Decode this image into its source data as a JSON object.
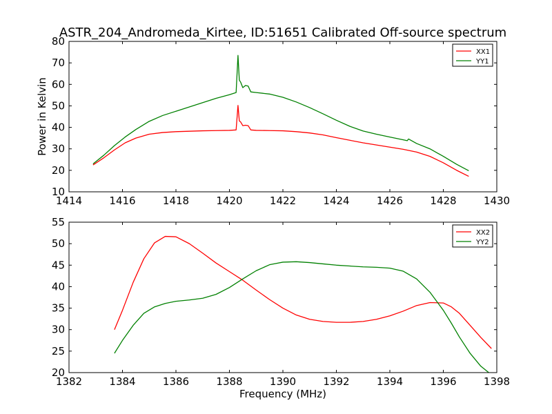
{
  "figure_title": "ASTR_204_Andromeda_Kirtee, ID:51651 Calibrated Off-source spectrum",
  "chart_data": [
    {
      "type": "line",
      "title": "ASTR_204_Andromeda_Kirtee, ID:51651 Calibrated Off-source spectrum",
      "xlabel": "",
      "ylabel": "Power in Kelvin",
      "xlim": [
        1414,
        1430
      ],
      "ylim": [
        10,
        80
      ],
      "xticks": [
        1414,
        1416,
        1418,
        1420,
        1422,
        1424,
        1426,
        1428,
        1430
      ],
      "yticks": [
        10,
        20,
        30,
        40,
        50,
        60,
        70,
        80
      ],
      "grid": false,
      "legend_position": "top-right",
      "series": [
        {
          "name": "XX1",
          "color": "#ff0000",
          "x": [
            1414.9,
            1415.3,
            1415.7,
            1416.1,
            1416.5,
            1417.0,
            1417.5,
            1418.0,
            1418.5,
            1419.0,
            1419.5,
            1420.0,
            1420.25,
            1420.32,
            1420.37,
            1420.42,
            1420.5,
            1420.6,
            1420.7,
            1420.8,
            1421.0,
            1421.5,
            1422.0,
            1422.5,
            1423.0,
            1423.5,
            1424.0,
            1424.5,
            1425.0,
            1425.5,
            1426.0,
            1426.5,
            1427.0,
            1427.5,
            1428.0,
            1428.5,
            1428.95
          ],
          "y": [
            22.5,
            25.8,
            29.5,
            32.8,
            35.0,
            36.8,
            37.6,
            38.0,
            38.2,
            38.4,
            38.5,
            38.6,
            38.8,
            50.2,
            43.0,
            42.5,
            40.8,
            41.0,
            40.8,
            38.8,
            38.6,
            38.5,
            38.4,
            38.0,
            37.4,
            36.5,
            35.2,
            34.0,
            32.8,
            31.8,
            30.8,
            29.8,
            28.5,
            26.5,
            23.5,
            20.0,
            17.2
          ]
        },
        {
          "name": "YY1",
          "color": "#008000",
          "x": [
            1414.9,
            1415.3,
            1415.7,
            1416.1,
            1416.5,
            1417.0,
            1417.5,
            1418.0,
            1418.5,
            1419.0,
            1419.5,
            1420.0,
            1420.25,
            1420.32,
            1420.37,
            1420.42,
            1420.5,
            1420.6,
            1420.7,
            1420.8,
            1421.0,
            1421.5,
            1422.0,
            1422.5,
            1423.0,
            1423.5,
            1424.0,
            1424.5,
            1425.0,
            1425.5,
            1426.0,
            1426.5,
            1426.65,
            1426.7,
            1427.0,
            1427.5,
            1428.0,
            1428.5,
            1428.95
          ],
          "y": [
            23.0,
            27.0,
            31.5,
            35.5,
            39.0,
            42.8,
            45.5,
            47.5,
            49.5,
            51.5,
            53.5,
            55.2,
            56.2,
            73.5,
            62.0,
            61.0,
            58.5,
            59.5,
            59.2,
            56.5,
            56.2,
            55.5,
            54.0,
            51.8,
            49.2,
            46.3,
            43.3,
            40.5,
            38.3,
            36.8,
            35.5,
            34.2,
            33.8,
            34.6,
            32.5,
            30.0,
            26.5,
            22.8,
            19.8
          ]
        }
      ]
    },
    {
      "type": "line",
      "title": "",
      "xlabel": "Frequency (MHz)",
      "ylabel": "",
      "xlim": [
        1382,
        1398
      ],
      "ylim": [
        20,
        55
      ],
      "xticks": [
        1382,
        1384,
        1386,
        1388,
        1390,
        1392,
        1394,
        1396,
        1398
      ],
      "yticks": [
        20,
        25,
        30,
        35,
        40,
        45,
        50,
        55
      ],
      "grid": false,
      "legend_position": "top-right",
      "series": [
        {
          "name": "XX2",
          "color": "#ff0000",
          "x": [
            1383.7,
            1384.0,
            1384.4,
            1384.8,
            1385.2,
            1385.6,
            1386.0,
            1386.5,
            1387.0,
            1387.5,
            1388.0,
            1388.5,
            1389.0,
            1389.5,
            1390.0,
            1390.5,
            1391.0,
            1391.5,
            1392.0,
            1392.5,
            1393.0,
            1393.5,
            1394.0,
            1394.5,
            1395.0,
            1395.5,
            1396.0,
            1396.3,
            1396.6,
            1397.0,
            1397.4,
            1397.8
          ],
          "y": [
            30.0,
            34.5,
            41.0,
            46.5,
            50.2,
            51.7,
            51.6,
            50.0,
            47.8,
            45.5,
            43.5,
            41.5,
            39.2,
            37.0,
            35.0,
            33.4,
            32.4,
            31.9,
            31.7,
            31.7,
            31.9,
            32.4,
            33.2,
            34.3,
            35.6,
            36.3,
            36.2,
            35.3,
            33.8,
            31.0,
            28.2,
            25.6
          ]
        },
        {
          "name": "YY2",
          "color": "#008000",
          "x": [
            1383.7,
            1384.0,
            1384.4,
            1384.8,
            1385.2,
            1385.6,
            1386.0,
            1386.5,
            1387.0,
            1387.5,
            1388.0,
            1388.5,
            1389.0,
            1389.5,
            1390.0,
            1390.5,
            1391.0,
            1391.5,
            1392.0,
            1392.5,
            1393.0,
            1393.5,
            1394.0,
            1394.5,
            1395.0,
            1395.5,
            1396.0,
            1396.3,
            1396.6,
            1397.0,
            1397.4,
            1397.7
          ],
          "y": [
            24.5,
            27.5,
            31.0,
            33.8,
            35.3,
            36.1,
            36.6,
            36.9,
            37.3,
            38.2,
            39.8,
            41.8,
            43.7,
            45.1,
            45.7,
            45.8,
            45.6,
            45.3,
            45.0,
            44.8,
            44.6,
            44.5,
            44.3,
            43.6,
            41.8,
            38.7,
            34.5,
            31.5,
            28.3,
            24.5,
            21.5,
            20.0
          ]
        }
      ]
    }
  ]
}
